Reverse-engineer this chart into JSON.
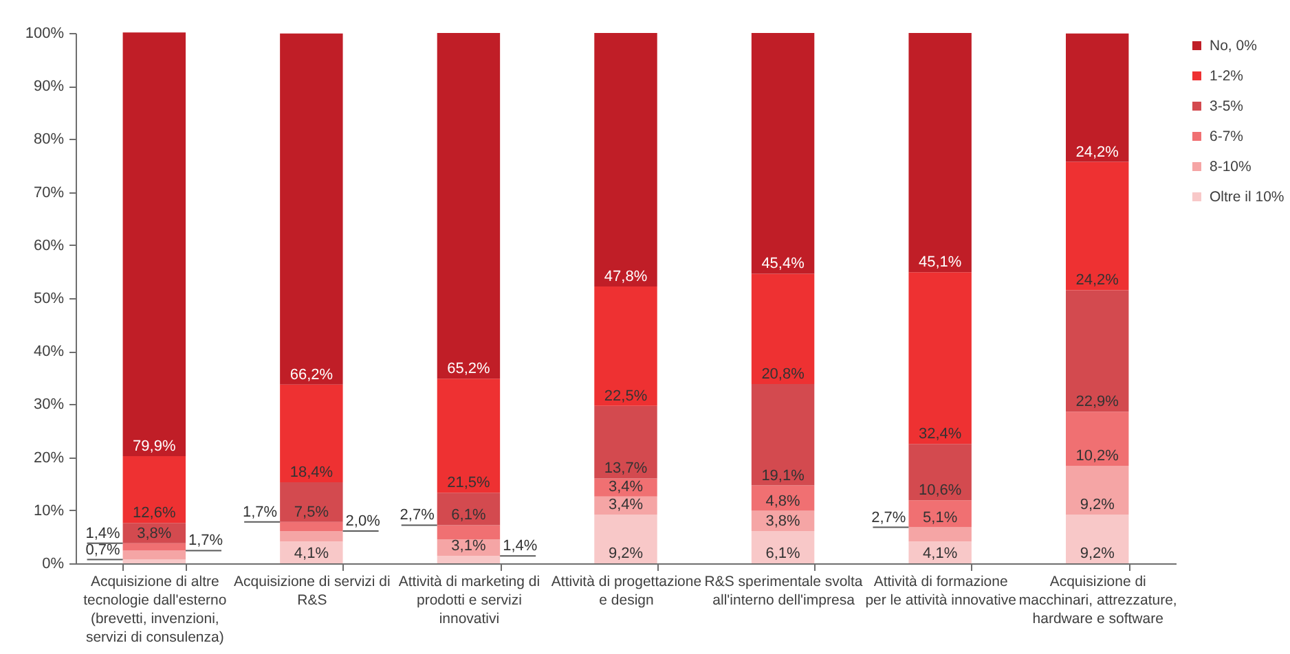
{
  "chart_data": {
    "type": "bar",
    "stacked": true,
    "legend": "top right",
    "categories": [
      "Acquisizione di altre tecnologie dall'esterno (brevetti, invenzioni, servizi di consulenza)",
      "Acquisizione di servizi di R&S",
      "Attività di marketing di prodotti e servizi innovativi",
      "Attività di progettazione e design",
      "R&S sperimentale svolta all'interno dell'impresa",
      "Attività di formazione per le attività innovative",
      "Acquisizione di macchinari, attrezzature, hardware e software"
    ],
    "series": [
      {
        "name": "Oltre il 10%",
        "color": "#f8c8c8",
        "values": [
          0.7,
          4.1,
          1.4,
          9.2,
          6.1,
          4.1,
          9.2
        ],
        "value_labels": [
          "0,7%",
          "4,1%",
          "1,4%",
          "9,2%",
          "6,1%",
          "4,1%",
          "9,2%"
        ]
      },
      {
        "name": "8-10%",
        "color": "#f5a5a5",
        "values": [
          1.7,
          2.0,
          3.1,
          3.4,
          3.8,
          2.7,
          9.2
        ],
        "value_labels": [
          "1,7%",
          "2,0%",
          "3,1%",
          "3,4%",
          "3,8%",
          "2,7%",
          "9,2%"
        ]
      },
      {
        "name": "6-7%",
        "color": "#f07072",
        "values": [
          1.4,
          1.7,
          2.7,
          3.4,
          4.8,
          5.1,
          10.2
        ],
        "value_labels": [
          "1,4%",
          "1,7%",
          "2,7%",
          "3,4%",
          "4,8%",
          "5,1%",
          "10,2%"
        ]
      },
      {
        "name": "3-5%",
        "color": "#d34a4f",
        "values": [
          3.8,
          7.5,
          6.1,
          13.7,
          19.1,
          10.6,
          22.9
        ],
        "value_labels": [
          "3,8%",
          "7,5%",
          "6,1%",
          "13,7%",
          "19,1%",
          "10,6%",
          "22,9%"
        ]
      },
      {
        "name": "1-2%",
        "color": "#ee3132",
        "values": [
          12.6,
          18.4,
          21.5,
          22.5,
          20.8,
          32.4,
          24.2
        ],
        "value_labels": [
          "12,6%",
          "18,4%",
          "21,5%",
          "22,5%",
          "20,8%",
          "32,4%",
          "24,2%"
        ]
      },
      {
        "name": "No, 0%",
        "color": "#c01e27",
        "values": [
          79.9,
          66.2,
          65.2,
          47.8,
          45.4,
          45.1,
          24.2
        ],
        "value_labels": [
          "79,9%",
          "66,2%",
          "65,2%",
          "47,8%",
          "45,4%",
          "45,1%",
          "24,2%"
        ]
      }
    ],
    "ylim": [
      0,
      100
    ],
    "yticks": [
      {
        "value": 0,
        "label": "0%"
      },
      {
        "value": 10,
        "label": "10%"
      },
      {
        "value": 20,
        "label": "20%"
      },
      {
        "value": 30,
        "label": "30%"
      },
      {
        "value": 40,
        "label": "40%"
      },
      {
        "value": 50,
        "label": "50%"
      },
      {
        "value": 60,
        "label": "60%"
      },
      {
        "value": 70,
        "label": "70%"
      },
      {
        "value": 80,
        "label": "80%"
      },
      {
        "value": 90,
        "label": "90%"
      },
      {
        "value": 100,
        "label": "100%"
      }
    ]
  }
}
